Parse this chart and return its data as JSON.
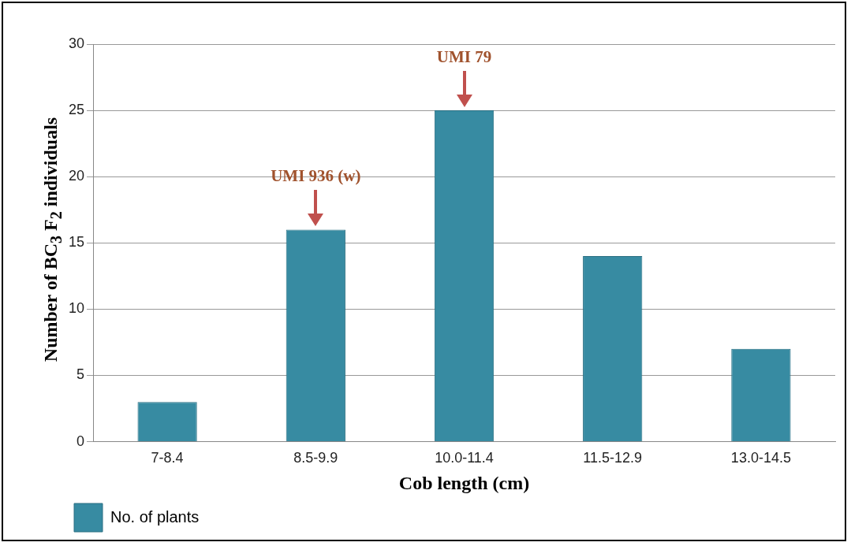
{
  "chart_data": {
    "type": "bar",
    "xlabel": "Cob length (cm)",
    "ylabel": "Number of BC$_{3}$ F$_{2}$ individuals",
    "categories": [
      "7-8.4",
      "8.5-9.9",
      "10.0-11.4",
      "11.5-12.9",
      "13.0-14.5"
    ],
    "series": [
      {
        "name": "No. of plants",
        "color": "#378ba2",
        "values": [
          3,
          16,
          25,
          14,
          7
        ]
      }
    ],
    "ylim": [
      0,
      30
    ],
    "yticks": [
      0,
      5,
      10,
      15,
      20,
      25,
      30
    ],
    "grid": "y",
    "legend": "bottom left",
    "annotations": [
      {
        "text": "UMI 936 (w)",
        "x": "8.5-9.9",
        "y": 16
      },
      {
        "text": "UMI 79",
        "x": "10.0-11.4",
        "y": 25
      }
    ]
  }
}
